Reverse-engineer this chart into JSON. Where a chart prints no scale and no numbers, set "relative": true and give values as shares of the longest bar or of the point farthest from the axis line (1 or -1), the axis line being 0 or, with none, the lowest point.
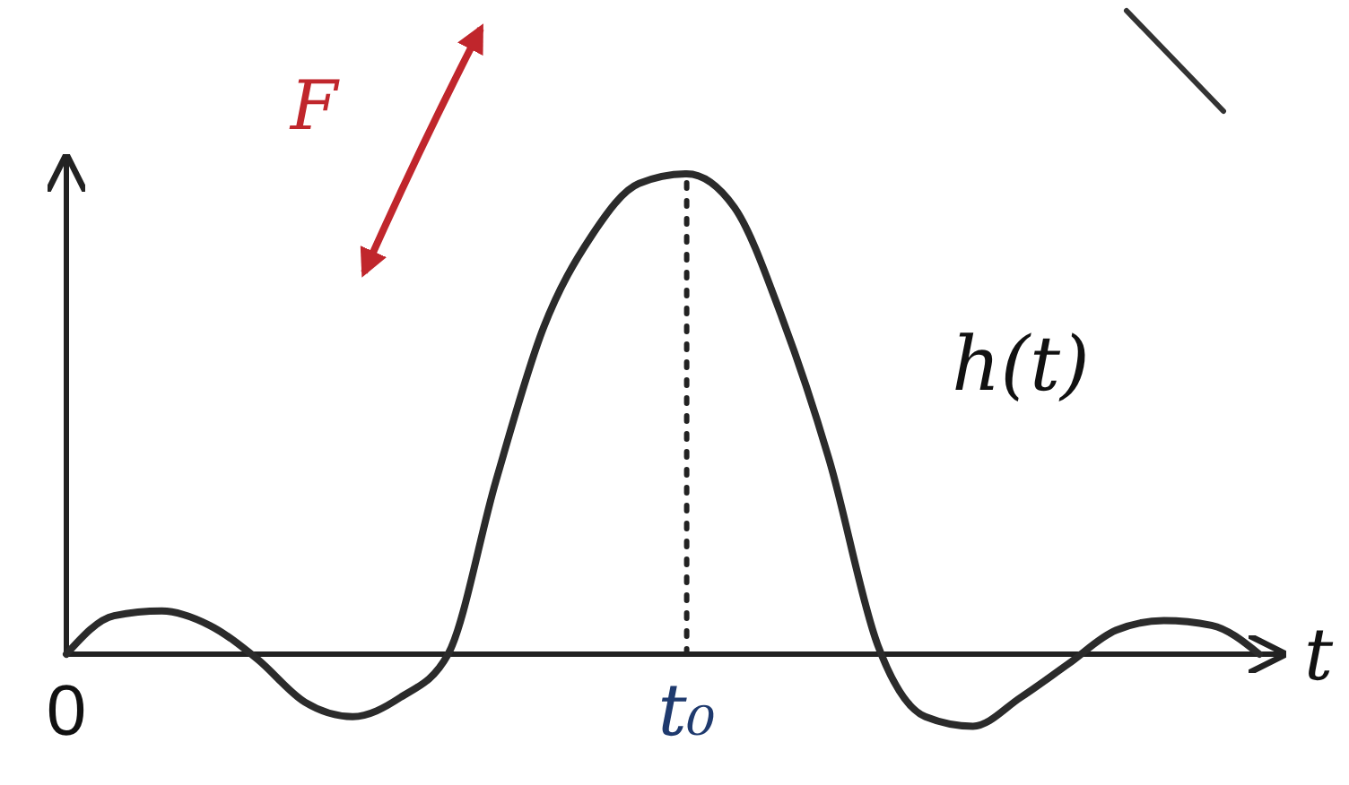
{
  "chart_data": {
    "type": "line",
    "relative": true,
    "categories": [
      "0",
      null,
      null,
      null,
      null,
      null,
      null,
      null,
      null,
      null,
      null,
      null,
      null,
      "t₀",
      null,
      null,
      null,
      null,
      null,
      null,
      null,
      null,
      null,
      null,
      null,
      null
    ],
    "series": [
      {
        "name": "h(t)",
        "color": "#2b2b2b",
        "values": [
          0,
          0.08,
          0.09,
          0.06,
          -0.01,
          -0.1,
          -0.13,
          -0.09,
          0,
          0.36,
          0.68,
          0.87,
          0.98,
          1,
          0.93,
          0.7,
          0.4,
          0.02,
          -0.13,
          -0.15,
          -0.09,
          -0.02,
          0.05,
          0.07,
          0.06,
          0
        ]
      }
    ],
    "xlabel": "t",
    "ref_lines": [
      {
        "axis": "x",
        "value": "t₀",
        "line_style": "dotted"
      }
    ],
    "annotations": [
      "F"
    ],
    "marker": "none",
    "line_style": "solid",
    "legend": false
  }
}
